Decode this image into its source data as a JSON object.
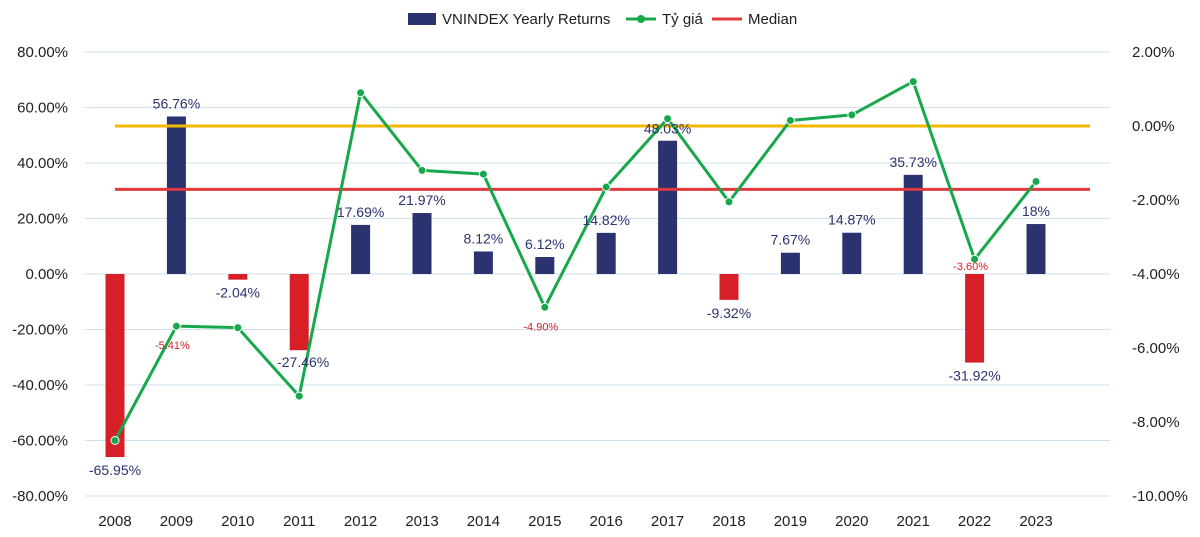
{
  "chart_data": {
    "type": "bar",
    "legend": {
      "position": "top",
      "bars": "VNINDEX Yearly Returns",
      "line": "Tỷ giá",
      "median": "Median"
    },
    "categories": [
      "2008",
      "2009",
      "2010",
      "2011",
      "2012",
      "2013",
      "2014",
      "2015",
      "2016",
      "2017",
      "2018",
      "2019",
      "2020",
      "2021",
      "2022",
      "2023"
    ],
    "series": [
      {
        "name": "VNINDEX Yearly Returns",
        "axis": "left",
        "values": [
          -65.95,
          56.76,
          -2.04,
          -27.46,
          17.69,
          21.97,
          8.12,
          6.12,
          14.82,
          48.03,
          -9.32,
          7.67,
          14.87,
          35.73,
          -31.92,
          18
        ],
        "labels": [
          "-65.95%",
          "56.76%",
          "-2.04%",
          "-27.46%",
          "17.69%",
          "21.97%",
          "8.12%",
          "6.12%",
          "14.82%",
          "48.03%",
          "-9.32%",
          "7.67%",
          "14.87%",
          "35.73%",
          "-31.92%",
          "18%"
        ]
      },
      {
        "name": "Tỷ giá",
        "axis": "right",
        "values": [
          -8.5,
          -5.41,
          -5.45,
          -7.3,
          0.9,
          -1.2,
          -1.3,
          -4.9,
          -1.65,
          0.2,
          -2.05,
          0.15,
          0.3,
          1.2,
          -3.6,
          -1.5
        ],
        "point_labels": [
          {
            "index": 1,
            "text": "-5.41%"
          },
          {
            "index": 7,
            "text": "-4.90%"
          },
          {
            "index": 14,
            "text": "-3.60%"
          }
        ]
      }
    ],
    "reference_lines": [
      {
        "name": "Median",
        "axis": "left",
        "value": 30.5,
        "color": "#e03a3e"
      },
      {
        "name": "Zero",
        "axis": "right",
        "value": 0,
        "color": "#f5b800"
      }
    ],
    "y_left": {
      "min": -80,
      "max": 80,
      "step": 20,
      "ticks": [
        "80.00%",
        "60.00%",
        "40.00%",
        "20.00%",
        "0.00%",
        "-20.00%",
        "-40.00%",
        "-60.00%",
        "-80.00%"
      ]
    },
    "y_right": {
      "min": -10,
      "max": 2,
      "step": 2,
      "ticks": [
        "2.00%",
        "0.00%",
        "-2.00%",
        "-4.00%",
        "-6.00%",
        "-8.00%",
        "-10.00%"
      ]
    },
    "grid": true,
    "colors": {
      "positive_bar": "#2a3270",
      "negative_bar": "#d61f26",
      "line": "#17a84b",
      "median": "#e03a3e",
      "zero_line": "#f5b800",
      "grid": "#cfe0ee",
      "positive_label": "#2a3270",
      "negative_point_label": "#d61f26"
    }
  }
}
